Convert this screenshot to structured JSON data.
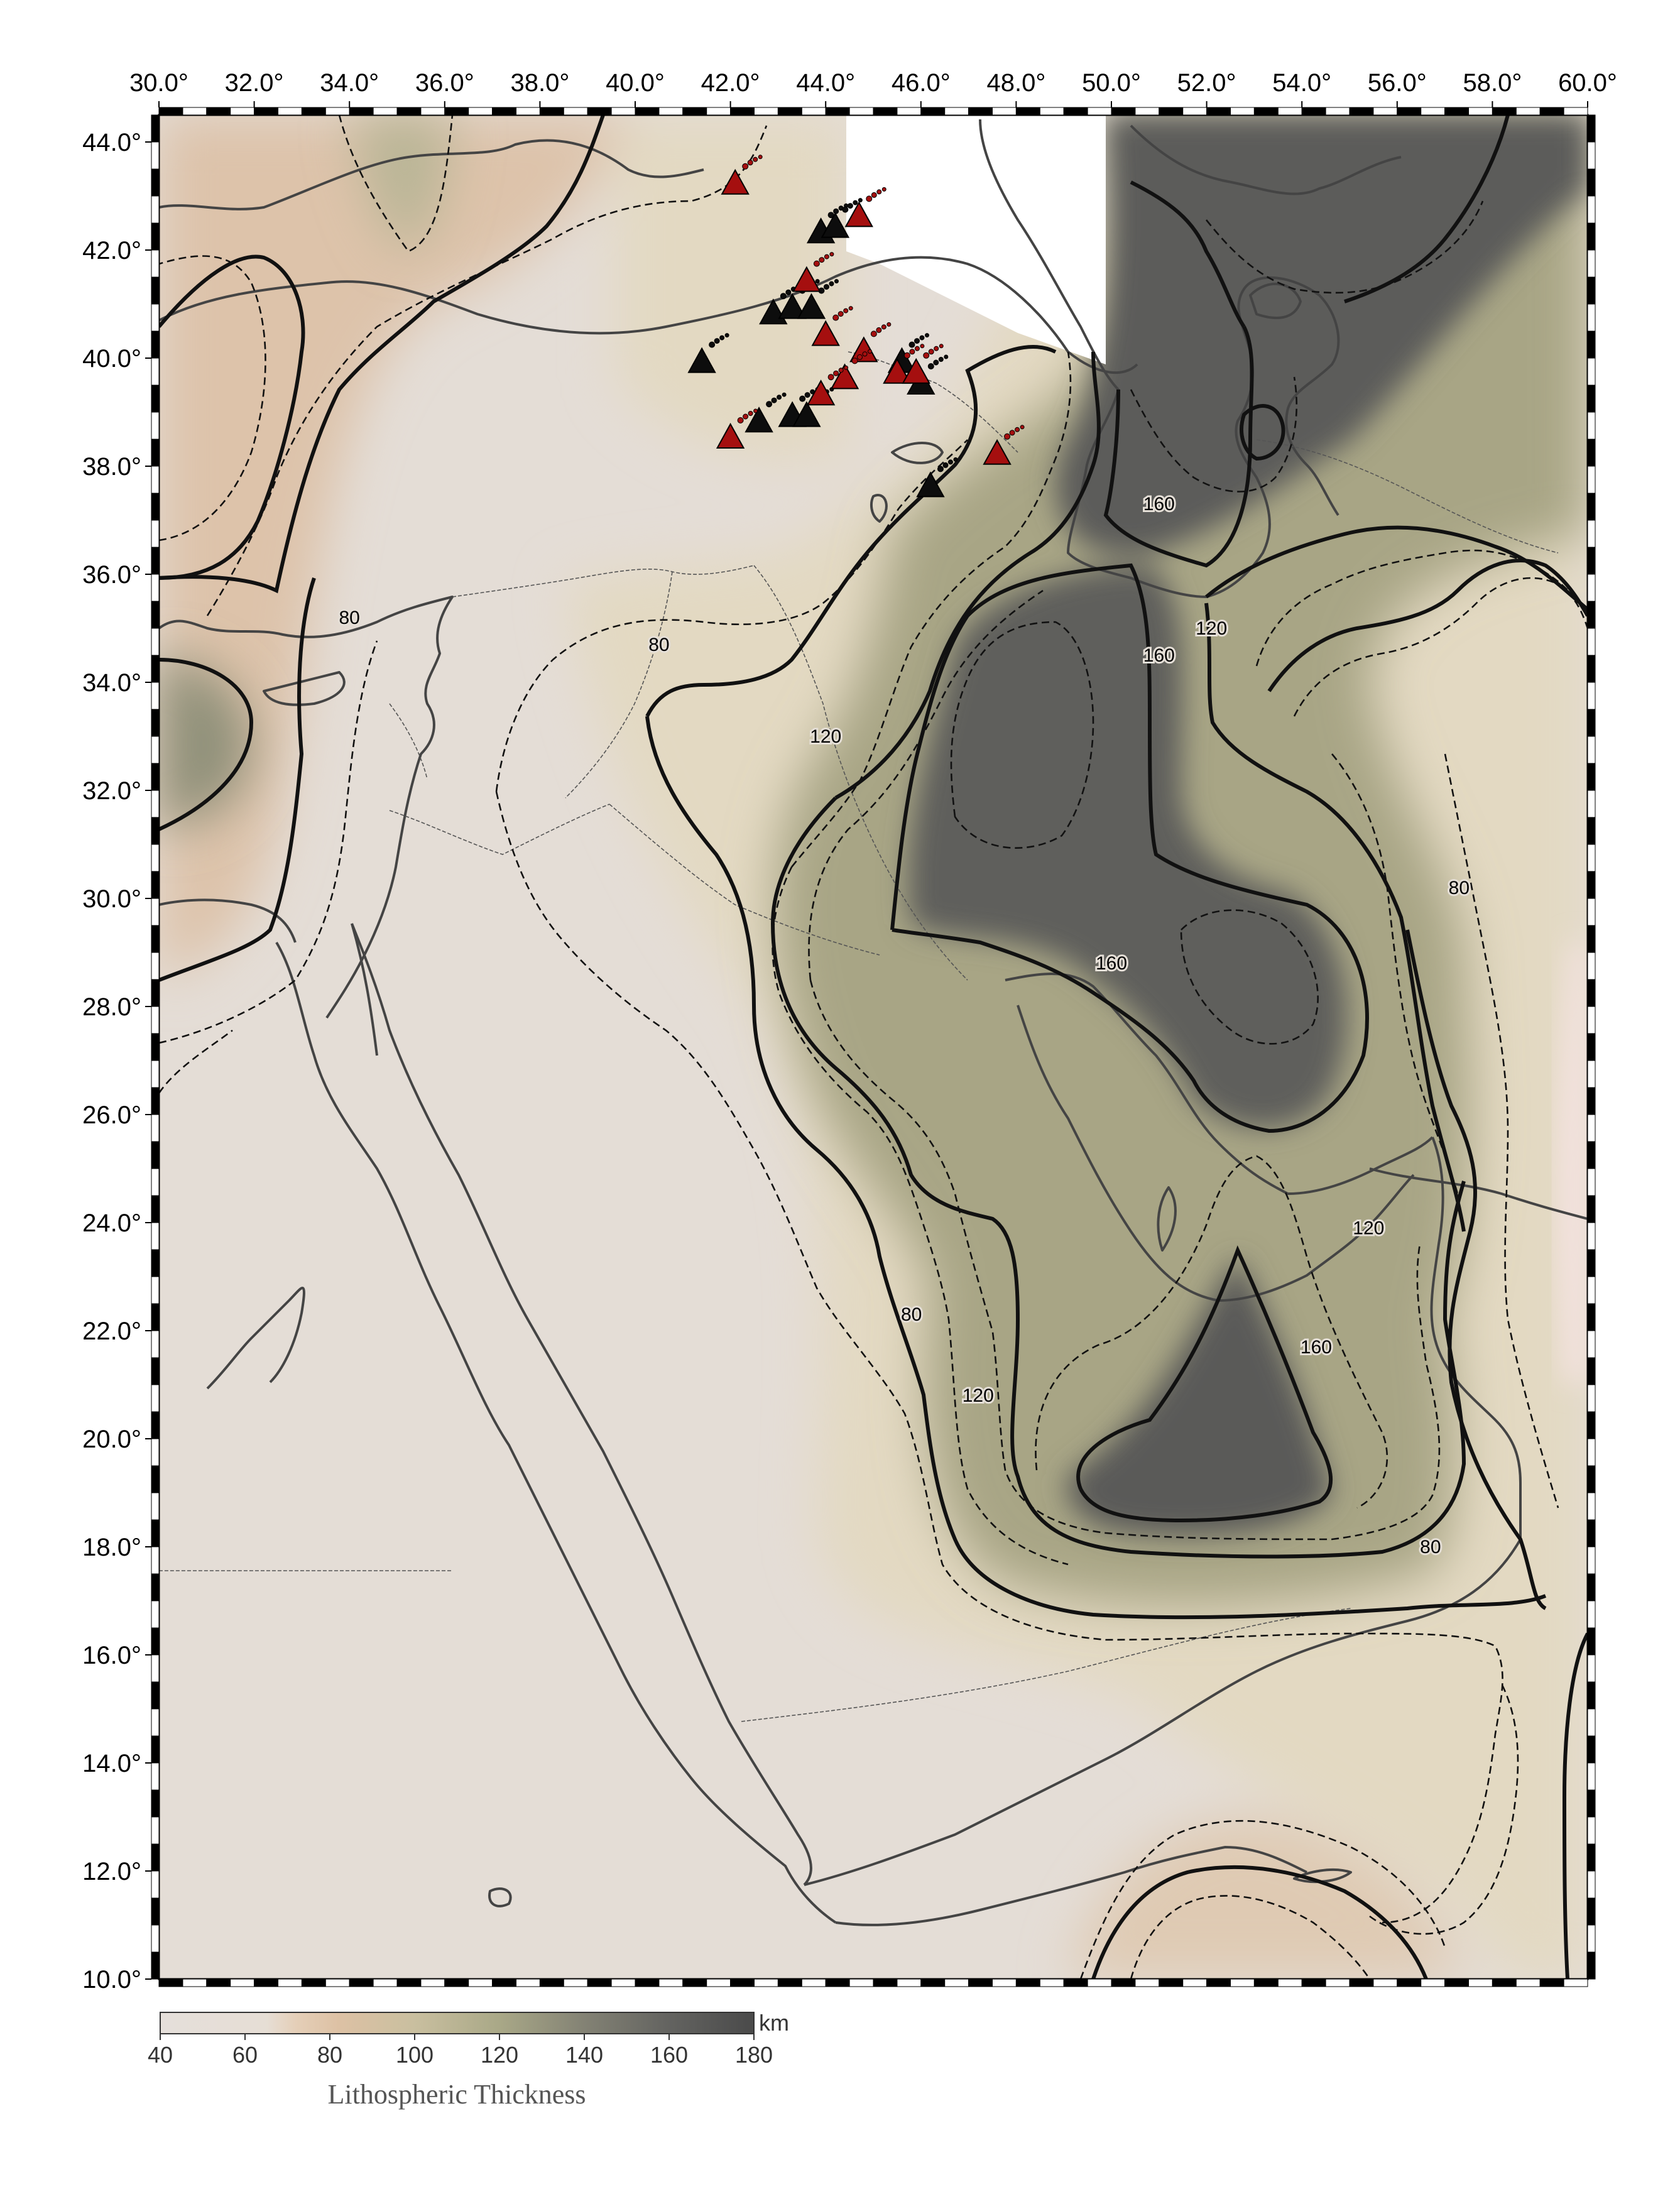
{
  "map": {
    "region": {
      "lon_min": 30,
      "lon_max": 60,
      "lat_min": 10,
      "lat_max": 44.5
    },
    "x_ticks": [
      {
        "lon": 30,
        "label": "30.0°"
      },
      {
        "lon": 32,
        "label": "32.0°"
      },
      {
        "lon": 34,
        "label": "34.0°"
      },
      {
        "lon": 36,
        "label": "36.0°"
      },
      {
        "lon": 38,
        "label": "38.0°"
      },
      {
        "lon": 40,
        "label": "40.0°"
      },
      {
        "lon": 42,
        "label": "42.0°"
      },
      {
        "lon": 44,
        "label": "44.0°"
      },
      {
        "lon": 46,
        "label": "46.0°"
      },
      {
        "lon": 48,
        "label": "48.0°"
      },
      {
        "lon": 50,
        "label": "50.0°"
      },
      {
        "lon": 52,
        "label": "52.0°"
      },
      {
        "lon": 54,
        "label": "54.0°"
      },
      {
        "lon": 56,
        "label": "56.0°"
      },
      {
        "lon": 58,
        "label": "58.0°"
      },
      {
        "lon": 60,
        "label": "60.0°"
      }
    ],
    "y_ticks": [
      {
        "lat": 44,
        "label": "44.0°"
      },
      {
        "lat": 42,
        "label": "42.0°"
      },
      {
        "lat": 40,
        "label": "40.0°"
      },
      {
        "lat": 38,
        "label": "38.0°"
      },
      {
        "lat": 36,
        "label": "36.0°"
      },
      {
        "lat": 34,
        "label": "34.0°"
      },
      {
        "lat": 32,
        "label": "32.0°"
      },
      {
        "lat": 30,
        "label": "30.0°"
      },
      {
        "lat": 28,
        "label": "28.0°"
      },
      {
        "lat": 26,
        "label": "26.0°"
      },
      {
        "lat": 24,
        "label": "24.0°"
      },
      {
        "lat": 22,
        "label": "22.0°"
      },
      {
        "lat": 20,
        "label": "20.0°"
      },
      {
        "lat": 18,
        "label": "18.0°"
      },
      {
        "lat": 16,
        "label": "16.0°"
      },
      {
        "lat": 14,
        "label": "14.0°"
      },
      {
        "lat": 12,
        "label": "12.0°"
      },
      {
        "lat": 10,
        "label": "10.0°"
      }
    ],
    "contour_labels": [
      {
        "text": "160",
        "lon": 51.0,
        "lat": 37.3
      },
      {
        "text": "160",
        "lon": 51.0,
        "lat": 34.5
      },
      {
        "text": "120",
        "lon": 52.1,
        "lat": 35.0
      },
      {
        "text": "80",
        "lon": 34.0,
        "lat": 35.2
      },
      {
        "text": "80",
        "lon": 40.5,
        "lat": 34.7
      },
      {
        "text": "120",
        "lon": 44.0,
        "lat": 33.0
      },
      {
        "text": "80",
        "lon": 57.3,
        "lat": 30.2
      },
      {
        "text": "160",
        "lon": 50.0,
        "lat": 28.8
      },
      {
        "text": "120",
        "lon": 55.4,
        "lat": 23.9
      },
      {
        "text": "80",
        "lon": 45.8,
        "lat": 22.3
      },
      {
        "text": "120",
        "lon": 47.2,
        "lat": 20.8
      },
      {
        "text": "160",
        "lon": 54.3,
        "lat": 21.7
      },
      {
        "text": "80",
        "lon": 56.7,
        "lat": 18.0
      }
    ],
    "volcanoes_red": [
      {
        "lon": 42.1,
        "lat": 43.2
      },
      {
        "lon": 44.7,
        "lat": 42.6
      },
      {
        "lon": 43.6,
        "lat": 41.4
      },
      {
        "lon": 44.0,
        "lat": 40.4
      },
      {
        "lon": 44.8,
        "lat": 40.1
      },
      {
        "lon": 44.4,
        "lat": 39.6
      },
      {
        "lon": 43.9,
        "lat": 39.3
      },
      {
        "lon": 45.5,
        "lat": 39.7
      },
      {
        "lon": 45.9,
        "lat": 39.7
      },
      {
        "lon": 42.0,
        "lat": 38.5
      },
      {
        "lon": 47.6,
        "lat": 38.2
      }
    ],
    "volcanoes_black": [
      {
        "lon": 43.9,
        "lat": 42.3
      },
      {
        "lon": 44.2,
        "lat": 42.4
      },
      {
        "lon": 42.9,
        "lat": 40.8
      },
      {
        "lon": 43.3,
        "lat": 40.9
      },
      {
        "lon": 43.7,
        "lat": 40.9
      },
      {
        "lon": 41.4,
        "lat": 39.9
      },
      {
        "lon": 45.6,
        "lat": 39.9
      },
      {
        "lon": 46.0,
        "lat": 39.5
      },
      {
        "lon": 42.6,
        "lat": 38.8
      },
      {
        "lon": 43.3,
        "lat": 38.9
      },
      {
        "lon": 43.6,
        "lat": 38.9
      },
      {
        "lon": 46.2,
        "lat": 37.6
      }
    ]
  },
  "colorbar": {
    "unit": "km",
    "title": "Lithospheric Thickness",
    "min": 40,
    "max": 180,
    "tick_values": [
      40,
      60,
      80,
      100,
      120,
      140,
      160,
      180
    ],
    "tick_labels": [
      "40",
      "60",
      "80",
      "100",
      "120",
      "140",
      "160",
      "180"
    ],
    "stops": [
      {
        "value": 40,
        "color": "#e5dfda"
      },
      {
        "value": 65,
        "color": "#e6ded5"
      },
      {
        "value": 72,
        "color": "#e5cfb8"
      },
      {
        "value": 82,
        "color": "#ddc1a4"
      },
      {
        "value": 100,
        "color": "#c9bf9f"
      },
      {
        "value": 120,
        "color": "#a9a887"
      },
      {
        "value": 140,
        "color": "#838274"
      },
      {
        "value": 160,
        "color": "#636360"
      },
      {
        "value": 180,
        "color": "#4a4a4a"
      }
    ]
  },
  "colors": {
    "background_fill": "#e5dfd7",
    "coastline": "#444444",
    "contour": "#111111",
    "volcano_red": "#a50f0f",
    "volcano_black": "#0d0d0d"
  }
}
